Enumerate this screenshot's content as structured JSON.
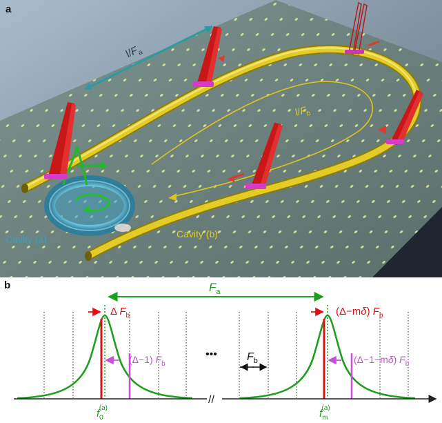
{
  "panel_a": {
    "label": "a",
    "arrow_label_a": {
      "prefix": "l/",
      "var": "F",
      "sub": "a"
    },
    "arrow_label_b": {
      "prefix": "l/",
      "var": "F",
      "sub": "b"
    },
    "cavity_a_label": "Cavity (a)",
    "cavity_b_label": "Cavity (b)",
    "colors": {
      "background_top": "#9fb3c2",
      "background_bottom": "#1e2530",
      "chip": "#6f8683",
      "dots": "#d9e59a",
      "waveguide": "#d8c21c",
      "ring": "#49a9c6",
      "antenna": "#d01a1a",
      "contact": "#d63cc8",
      "wave": "#22b82a",
      "length_arrow": "#2e9aa2"
    }
  },
  "panel_b": {
    "label": "b",
    "F_a": {
      "var": "F",
      "sub": "a"
    },
    "F_b": {
      "var": "F",
      "sub": "b"
    },
    "delta_Fb": {
      "pre": "Δ ",
      "var": "F",
      "sub": "b"
    },
    "delta_minus_one": {
      "pre": "(Δ−1) ",
      "var": "F",
      "sub": "b"
    },
    "delta_minus_mdelta": {
      "pre": "(Δ−m",
      "delta": "δ",
      "post": ") ",
      "var": "F",
      "sub": "b"
    },
    "delta_minus_one_mdelta": {
      "pre": "(Δ−1−m",
      "delta": "δ",
      "post": ") ",
      "var": "F",
      "sub": "b"
    },
    "ellipsis": "•••",
    "axis_break": "//",
    "f0": {
      "var": "f",
      "sub": "0",
      "sup": "(a)"
    },
    "fm": {
      "var": "f",
      "sub": "m",
      "sup": "(a)"
    },
    "colors": {
      "resonance": "#1e9e1e",
      "red": "#dd1111",
      "magenta": "#c84fd8",
      "grid": "#222222",
      "axis": "#222222"
    }
  }
}
